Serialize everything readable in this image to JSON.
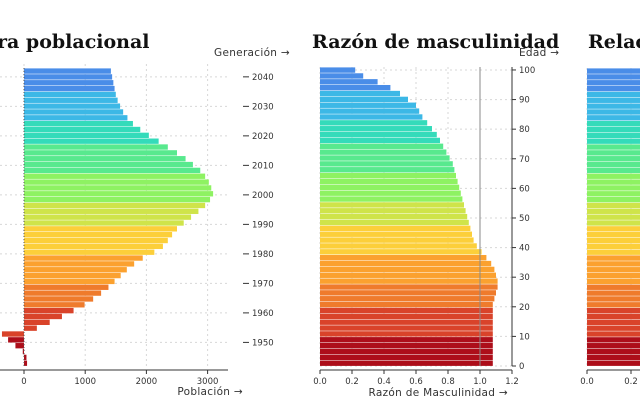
{
  "colors": {
    "band_colors": [
      "#ad0e1a",
      "#d9432a",
      "#ef7b2c",
      "#fba12f",
      "#fccf3a",
      "#cfe44a",
      "#8ef262",
      "#58e98e",
      "#34dbba",
      "#3cb8e6",
      "#4a8de8"
    ],
    "grid": "#d7d7d7",
    "reference_line": "#8a8a8a",
    "axis": "#333333"
  },
  "chart_data": [
    {
      "type": "bar",
      "orientation": "horizontal",
      "title": "ra poblacional",
      "xlabel": "Población →",
      "ylabel": "Generación →",
      "x_ticks": [
        "0",
        "1000",
        "2000",
        "3000"
      ],
      "xlim": [
        -450,
        3300
      ],
      "y_ticks": [
        "1950",
        "1960",
        "1970",
        "1980",
        "1990",
        "2000",
        "2010",
        "2020",
        "2030",
        "2040"
      ],
      "ylim": [
        1942,
        2043
      ],
      "grid": true,
      "y": [
        1942,
        1944,
        1946,
        1948,
        1950,
        1952,
        1954,
        1956,
        1958,
        1960,
        1962,
        1964,
        1966,
        1968,
        1970,
        1972,
        1974,
        1976,
        1978,
        1980,
        1982,
        1984,
        1986,
        1988,
        1990,
        1992,
        1994,
        1996,
        1998,
        2000,
        2002,
        2004,
        2006,
        2008,
        2010,
        2012,
        2014,
        2016,
        2018,
        2020,
        2022,
        2024,
        2026,
        2028,
        2030,
        2032,
        2034,
        2036,
        2038,
        2040,
        2042
      ],
      "values": [
        50,
        40,
        -20,
        -140,
        -260,
        -360,
        210,
        420,
        620,
        810,
        990,
        1130,
        1260,
        1380,
        1480,
        1580,
        1680,
        1800,
        1940,
        2130,
        2270,
        2350,
        2420,
        2500,
        2610,
        2730,
        2850,
        2960,
        3040,
        3090,
        3060,
        3020,
        2960,
        2880,
        2760,
        2640,
        2500,
        2350,
        2200,
        2040,
        1900,
        1780,
        1690,
        1620,
        1570,
        1530,
        1500,
        1480,
        1460,
        1440,
        1420
      ]
    },
    {
      "type": "bar",
      "orientation": "horizontal",
      "title": "Razón de masculinidad",
      "xlabel": "Razón de Masculinidad →",
      "ylabel": "Edad →",
      "x_ticks": [
        "0.0",
        "0.2",
        "0.4",
        "0.6",
        "0.8",
        "1.0",
        "1.2"
      ],
      "xlim": [
        0,
        1.2
      ],
      "y_ticks": [
        "0",
        "10",
        "20",
        "30",
        "40",
        "50",
        "60",
        "70",
        "80",
        "90",
        "100"
      ],
      "ylim": [
        0,
        101
      ],
      "reference_line_x": 1.0,
      "grid": true,
      "y": [
        0,
        2,
        4,
        6,
        8,
        10,
        12,
        14,
        16,
        18,
        20,
        22,
        24,
        26,
        28,
        30,
        32,
        34,
        36,
        38,
        40,
        42,
        44,
        46,
        48,
        50,
        52,
        54,
        56,
        58,
        60,
        62,
        64,
        66,
        68,
        70,
        72,
        74,
        76,
        78,
        80,
        82,
        84,
        86,
        88,
        90,
        92,
        94,
        96,
        98,
        100
      ],
      "values": [
        1.08,
        1.08,
        1.08,
        1.08,
        1.08,
        1.08,
        1.08,
        1.08,
        1.08,
        1.08,
        1.08,
        1.09,
        1.1,
        1.11,
        1.11,
        1.1,
        1.09,
        1.07,
        1.04,
        1.01,
        0.98,
        0.96,
        0.95,
        0.94,
        0.93,
        0.92,
        0.91,
        0.9,
        0.89,
        0.88,
        0.87,
        0.86,
        0.85,
        0.84,
        0.83,
        0.81,
        0.79,
        0.77,
        0.75,
        0.73,
        0.7,
        0.67,
        0.64,
        0.62,
        0.6,
        0.55,
        0.5,
        0.44,
        0.36,
        0.27,
        0.22
      ]
    },
    {
      "type": "bar",
      "orientation": "horizontal",
      "title": "Relac",
      "x_ticks": [
        "0.0",
        "0.2"
      ],
      "ylim": [
        0,
        101
      ],
      "grid": true
    }
  ]
}
